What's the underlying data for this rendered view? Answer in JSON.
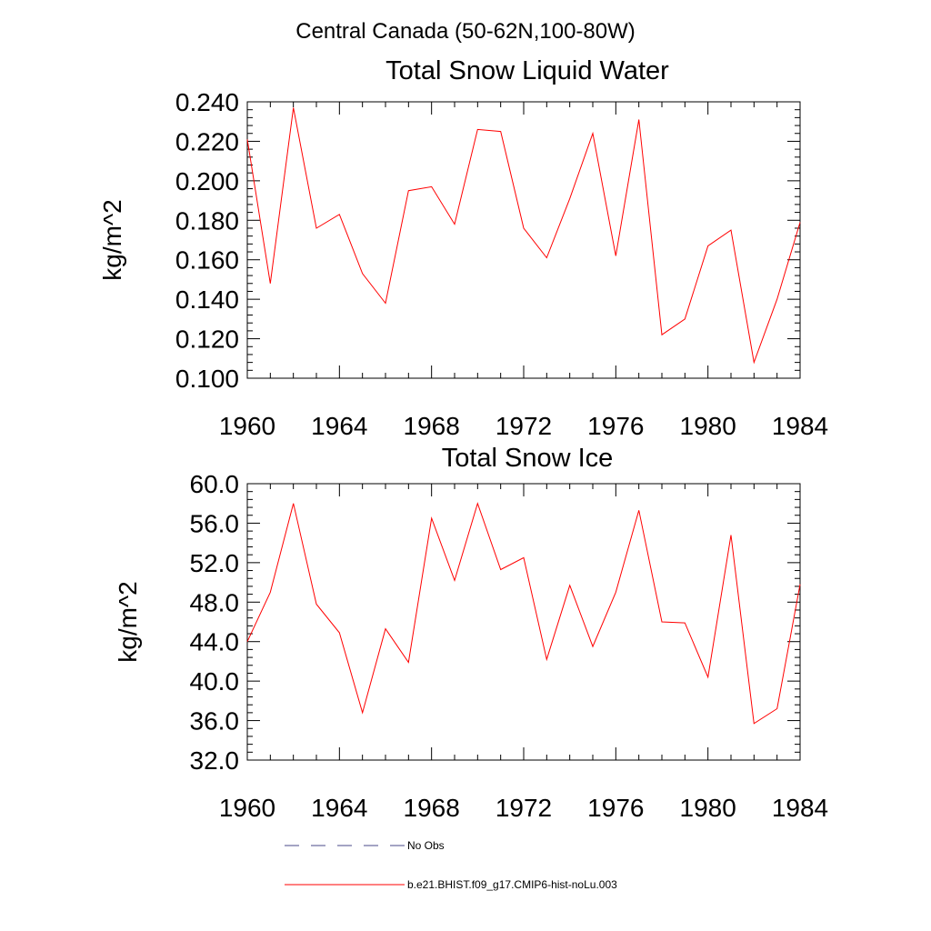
{
  "figure_title": "Central Canada (50-62N,100-80W)",
  "chart_data": [
    {
      "type": "line",
      "title": "Total Snow Liquid Water",
      "xlabel": "",
      "ylabel": "kg/m^2",
      "xlim": [
        1960,
        1984
      ],
      "ylim": [
        0.1,
        0.24
      ],
      "xticks": [
        "1960",
        "1964",
        "1968",
        "1972",
        "1976",
        "1980",
        "1984"
      ],
      "yticks": [
        "0.100",
        "0.120",
        "0.140",
        "0.160",
        "0.180",
        "0.200",
        "0.220",
        "0.240"
      ],
      "x": [
        1960,
        1961,
        1962,
        1963,
        1964,
        1965,
        1966,
        1967,
        1968,
        1969,
        1970,
        1971,
        1972,
        1973,
        1974,
        1975,
        1976,
        1977,
        1978,
        1979,
        1980,
        1981,
        1982,
        1983,
        1984
      ],
      "series": [
        {
          "name": "b.e21.BHIST.f09_g17.CMIP6-hist-noLu.003",
          "color": "#ff0000",
          "values": [
            0.221,
            0.148,
            0.237,
            0.176,
            0.183,
            0.153,
            0.138,
            0.195,
            0.197,
            0.178,
            0.226,
            0.225,
            0.176,
            0.161,
            0.191,
            0.224,
            0.162,
            0.231,
            0.122,
            0.13,
            0.167,
            0.175,
            0.108,
            0.14,
            0.179
          ]
        }
      ],
      "grid": false
    },
    {
      "type": "line",
      "title": "Total Snow Ice",
      "xlabel": "",
      "ylabel": "kg/m^2",
      "xlim": [
        1960,
        1984
      ],
      "ylim": [
        32.0,
        60.0
      ],
      "xticks": [
        "1960",
        "1964",
        "1968",
        "1972",
        "1976",
        "1980",
        "1984"
      ],
      "yticks": [
        "32.0",
        "36.0",
        "40.0",
        "44.0",
        "48.0",
        "52.0",
        "56.0",
        "60.0"
      ],
      "x": [
        1960,
        1961,
        1962,
        1963,
        1964,
        1965,
        1966,
        1967,
        1968,
        1969,
        1970,
        1971,
        1972,
        1973,
        1974,
        1975,
        1976,
        1977,
        1978,
        1979,
        1980,
        1981,
        1982,
        1983,
        1984
      ],
      "series": [
        {
          "name": "b.e21.BHIST.f09_g17.CMIP6-hist-noLu.003",
          "color": "#ff0000",
          "values": [
            44.0,
            49.0,
            58.0,
            47.8,
            44.9,
            36.8,
            45.3,
            41.9,
            56.5,
            50.2,
            58.0,
            51.3,
            52.5,
            42.2,
            49.7,
            43.5,
            49.0,
            57.3,
            46.0,
            45.9,
            40.4,
            54.8,
            35.7,
            37.2,
            49.8
          ]
        }
      ],
      "grid": false
    }
  ],
  "legend": {
    "placement": "bottom",
    "entries": [
      {
        "label": "No Obs",
        "style": "dashed",
        "color": "#4a4a8a"
      },
      {
        "label": "b.e21.BHIST.f09_g17.CMIP6-hist-noLu.003",
        "style": "solid",
        "color": "#ff0000"
      }
    ]
  }
}
